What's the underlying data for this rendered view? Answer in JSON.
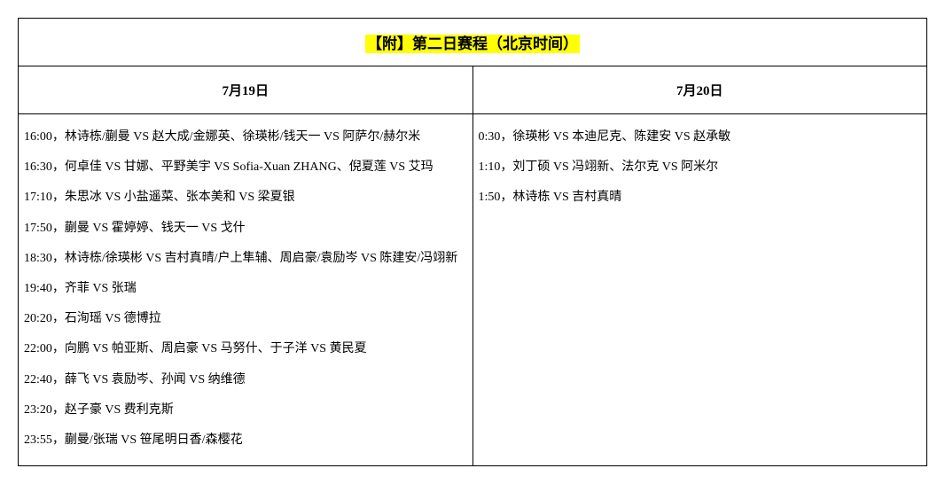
{
  "title": "【附】第二日赛程（北京时间）",
  "columns": [
    {
      "date": "7月19日"
    },
    {
      "date": "7月20日"
    }
  ],
  "schedule_left": [
    "16:00，林诗栋/蒯曼 VS 赵大成/金娜英、徐瑛彬/钱天一 VS 阿萨尔/赫尔米",
    "16:30，何卓佳 VS 甘娜、平野美宇 VS Sofia-Xuan ZHANG、倪夏莲 VS 艾玛",
    "17:10，朱思冰 VS 小盐遥菜、张本美和 VS 梁夏银",
    "17:50，蒯曼 VS 霍婷婷、钱天一 VS 戈什",
    "18:30，林诗栋/徐瑛彬 VS 吉村真晴/户上隼辅、周启豪/袁励岑 VS 陈建安/冯翊新",
    "19:40，齐菲 VS 张瑞",
    "20:20，石洵瑶 VS 德博拉",
    "22:00，向鹏 VS 帕亚斯、周启豪 VS 马努什、于子洋 VS 黄民夏",
    "22:40，薛飞 VS 袁励岑、孙闻 VS 纳维德",
    "23:20，赵子豪 VS 费利克斯",
    "23:55，蒯曼/张瑞 VS 笹尾明日香/森樱花"
  ],
  "schedule_right": [
    "0:30，徐瑛彬 VS 本迪尼克、陈建安 VS 赵承敏",
    "1:10，刘丁硕 VS 冯翊新、法尔克 VS 阿米尔",
    "1:50，林诗栋 VS 吉村真晴"
  ]
}
